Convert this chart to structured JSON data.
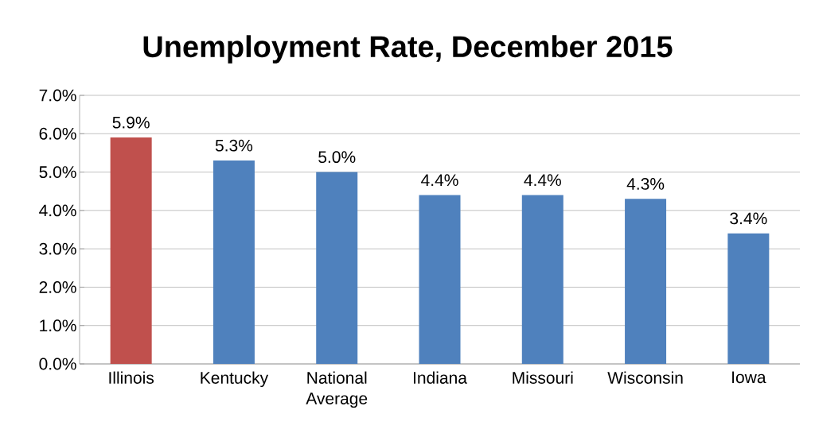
{
  "chart_data": {
    "type": "bar",
    "title": "Unemployment Rate, December 2015",
    "categories": [
      "Illinois",
      "Kentucky",
      "National Average",
      "Indiana",
      "Missouri",
      "Wisconsin",
      "Iowa"
    ],
    "values": [
      5.9,
      5.3,
      5.0,
      4.4,
      4.4,
      4.3,
      3.4
    ],
    "colors": [
      "#c0504d",
      "#4f81bd",
      "#4f81bd",
      "#4f81bd",
      "#4f81bd",
      "#4f81bd",
      "#4f81bd"
    ],
    "value_labels": [
      "5.9%",
      "5.3%",
      "5.0%",
      "4.4%",
      "4.4%",
      "4.3%",
      "3.4%"
    ],
    "ylim": [
      0,
      7
    ],
    "yticks": [
      {
        "value": 0,
        "label": "0.0%"
      },
      {
        "value": 1,
        "label": "1.0%"
      },
      {
        "value": 2,
        "label": "2.0%"
      },
      {
        "value": 3,
        "label": "3.0%"
      },
      {
        "value": 4,
        "label": "4.0%"
      },
      {
        "value": 5,
        "label": "5.0%"
      },
      {
        "value": 6,
        "label": "6.0%"
      },
      {
        "value": 7,
        "label": "7.0%"
      }
    ],
    "grid": "y"
  }
}
